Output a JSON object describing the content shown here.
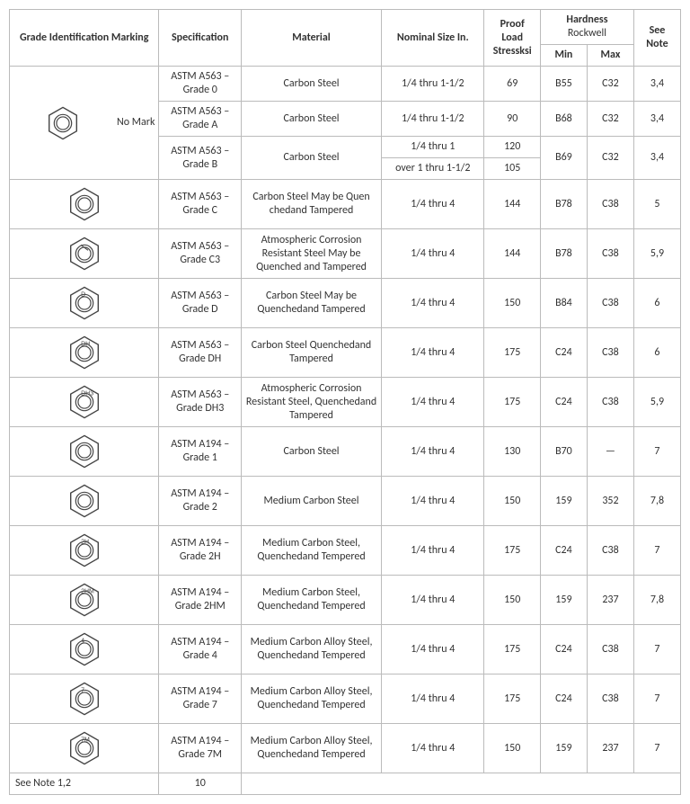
{
  "headers": {
    "grade": "Grade",
    "grade_sub": " Identification Marking",
    "spec": "Specification",
    "material": "Material",
    "nominal": "Nominal Size ",
    "nominal_unit": "In.",
    "proof": "Proof Load Stressksi",
    "hardness": "Hardness",
    "hardness_sub": "Rockwell",
    "min": "Min",
    "max": "Max",
    "seenote": "See Note"
  },
  "nomark_label": "No Mark",
  "footer": {
    "left": "See Note 1,2",
    "spec": "10"
  },
  "rows": [
    {
      "spec": "ASTM A563 – Grade 0",
      "material": "Carbon Steel",
      "size": "1/4 thru 1-1/2",
      "proof": "69",
      "hmin": "B55",
      "hmax": "C32",
      "note": "3,4"
    },
    {
      "spec": "ASTM A563 – Grade A",
      "material": "Carbon Steel",
      "size": "1/4 thru 1-1/2",
      "proof": "90",
      "hmin": "B68",
      "hmax": "C32",
      "note": "3,4"
    },
    {
      "spec": "ASTM A563 – Grade B",
      "material": "Carbon Steel",
      "size_a": "1/4 thru 1",
      "proof_a": "120",
      "size_b": "over 1 thru 1-1/2",
      "proof_b": "105",
      "hmin": "B69",
      "hmax": "C32",
      "note": "3,4"
    },
    {
      "spec": "ASTM A563 – Grade C",
      "material": "Carbon Steel May be Quen chedand Tampered",
      "size": "1/4 thru 4",
      "proof": "144",
      "hmin": "B78",
      "hmax": "C38",
      "note": "5",
      "mark": ""
    },
    {
      "spec": "ASTM A563 – Grade C3",
      "material": "Atmospheric Corrosion Resistant Steel May be Quenched and Tampered",
      "size": "1/4 thru 4",
      "proof": "144",
      "hmin": "B78",
      "hmax": "C38",
      "note": "5,9",
      "mark": "⦚"
    },
    {
      "spec": "ASTM A563 – Grade D",
      "material": "Carbon Steel May be Quenchedand Tampered",
      "size": "1/4 thru 4",
      "proof": "150",
      "hmin": "B84",
      "hmax": "C38",
      "note": "6",
      "mark": "D"
    },
    {
      "spec": "ASTM A563 – Grade DH",
      "material": "Carbon Steel Quenchedand Tampered",
      "size": "1/4 thru 4",
      "proof": "175",
      "hmin": "C24",
      "hmax": "C38",
      "note": "6",
      "mark": "DH"
    },
    {
      "spec": "ASTM A563 – Grade DH3",
      "material": "Atmospheric Corrosion Resistant Steel, Quenchedand Tampered",
      "size": "1/4 thru 4",
      "proof": "175",
      "hmin": "C24",
      "hmax": "C38",
      "note": "5,9",
      "mark": "DH3"
    },
    {
      "spec": "ASTM A194 – Grade 1",
      "material": "Carbon Steel",
      "size": "1/4 thru 4",
      "proof": "130",
      "hmin": "B70",
      "hmax": "—",
      "note": "7",
      "mark": ""
    },
    {
      "spec": "ASTM A194 – Grade 2",
      "material": "Medium Carbon Steel",
      "size": "1/4 thru 4",
      "proof": "150",
      "hmin": "159",
      "hmax": "352",
      "note": "7,8",
      "mark": ""
    },
    {
      "spec": "ASTM A194 – Grade 2H",
      "material": "Medium Carbon Steel, Quenchedand Tempered",
      "size": "1/4 thru 4",
      "proof": "175",
      "hmin": "C24",
      "hmax": "C38",
      "note": "7",
      "mark": "2H"
    },
    {
      "spec": "ASTM A194 – Grade 2HM",
      "material": "Medium Carbon Steel, Quenchedand Tempered",
      "size": "1/4 thru 4",
      "proof": "150",
      "hmin": "159",
      "hmax": "237",
      "note": "7,8",
      "mark": "2HM"
    },
    {
      "spec": "ASTM A194 – Grade 4",
      "material": "Medium Carbon Alloy Steel, Quenchedand Tempered",
      "size": "1/4 thru 4",
      "proof": "175",
      "hmin": "C24",
      "hmax": "C38",
      "note": "7",
      "mark": "4"
    },
    {
      "spec": "ASTM A194 – Grade 7",
      "material": "Medium Carbon Alloy Steel, Quenchedand Tempered",
      "size": "1/4 thru 4",
      "proof": "175",
      "hmin": "C24",
      "hmax": "C38",
      "note": "7",
      "mark": "7"
    },
    {
      "spec": "ASTM A194 – Grade 7M",
      "material": "Medium Carbon Alloy Steel, Quenchedand Tempered",
      "size": "1/4 thru 4",
      "proof": "150",
      "hmin": "159",
      "hmax": "237",
      "note": "7",
      "mark": "7M"
    }
  ],
  "style": {
    "hex_stroke": "#444",
    "hex_fill": "#fff",
    "hex_size": 42,
    "mark_font": 7
  }
}
